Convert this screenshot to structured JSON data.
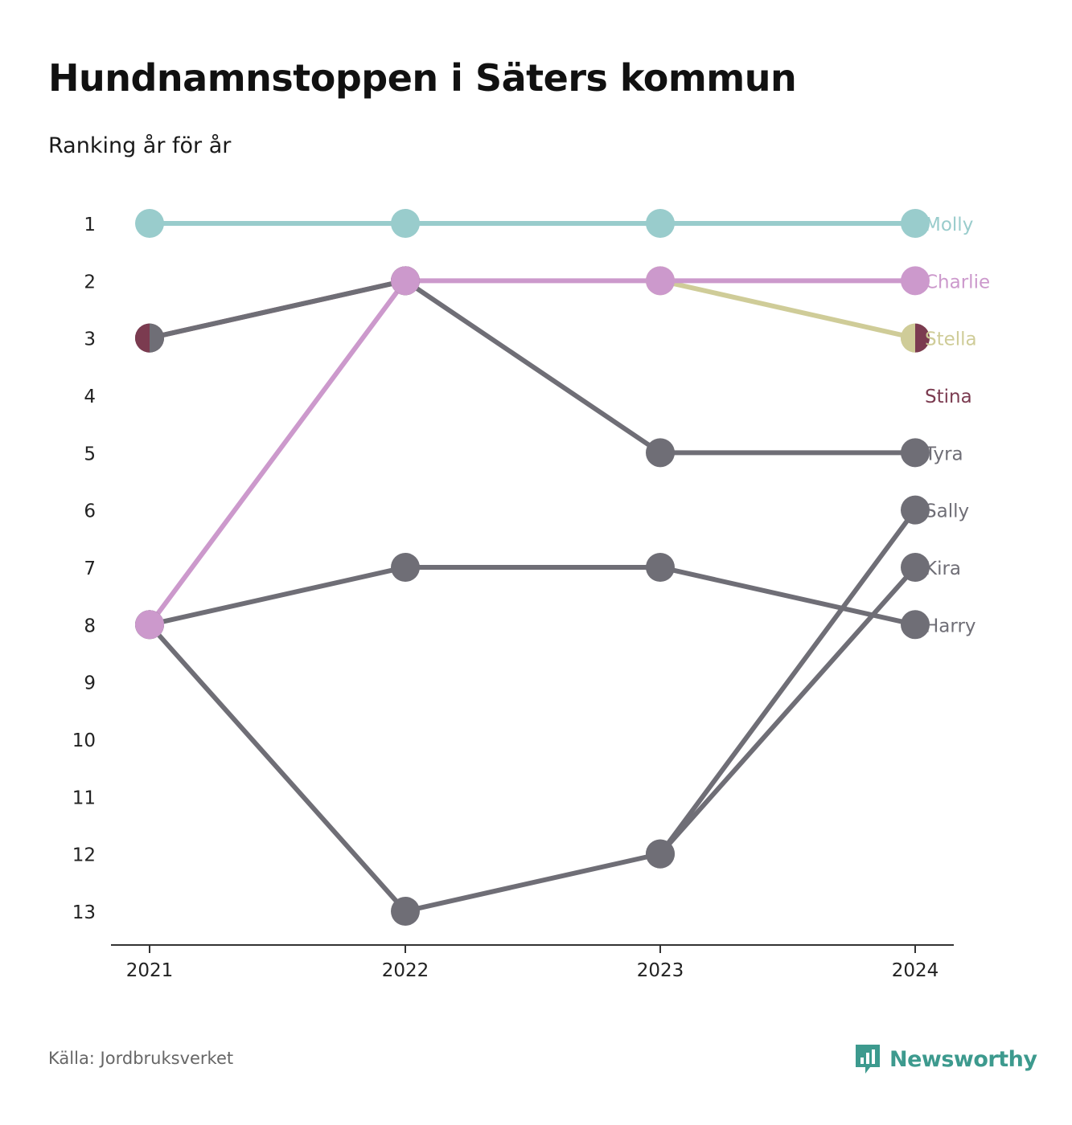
{
  "header": {
    "title": "Hundnamnstoppen i Säters kommun",
    "subtitle": "Ranking år för år"
  },
  "footer": {
    "source": "Källa: Jordbruksverket",
    "brand": "Newsworthy",
    "brand_color": "#3d9a8e"
  },
  "chart_data": {
    "type": "line",
    "x": [
      "2021",
      "2022",
      "2023",
      "2024"
    ],
    "y_ticks": [
      "1",
      "2",
      "3",
      "4",
      "5",
      "6",
      "7",
      "8",
      "9",
      "10",
      "11",
      "12",
      "13"
    ],
    "ylim": [
      1,
      13
    ],
    "y_inverted": true,
    "grid": false,
    "legend": "direct labels at right end",
    "series": [
      {
        "name": "Stina",
        "color": "#7b3b50",
        "values": [
          3,
          2,
          null,
          null
        ]
      },
      {
        "name": "Harry",
        "color": "#6f6e76",
        "values": [
          8,
          7,
          7,
          8
        ]
      },
      {
        "name": "Sally",
        "color": "#6f6e76",
        "values": [
          8,
          13,
          12,
          6
        ]
      },
      {
        "name": "Kira",
        "color": "#6f6e76",
        "values": [
          null,
          null,
          12,
          7
        ]
      },
      {
        "name": "Tyra",
        "color": "#6f6e76",
        "values": [
          3,
          2,
          5,
          5
        ]
      },
      {
        "name": "Stella",
        "color": "#cfcc98",
        "values": [
          null,
          null,
          2,
          3
        ]
      },
      {
        "name": "Charlie",
        "color": "#cc99cc",
        "values": [
          8,
          2,
          2,
          2
        ]
      },
      {
        "name": "Molly",
        "color": "#99cccc",
        "values": [
          1,
          1,
          1,
          1
        ]
      }
    ],
    "end_labels": [
      {
        "name": "Molly",
        "rank": 1,
        "color": "#99cccc"
      },
      {
        "name": "Charlie",
        "rank": 2,
        "color": "#cc99cc"
      },
      {
        "name": "Stella",
        "rank": 3,
        "color": "#cfcc98"
      },
      {
        "name": "Stina",
        "rank": 4,
        "color": "#7b3b50"
      },
      {
        "name": "Tyra",
        "rank": 5,
        "color": "#6f6e76"
      },
      {
        "name": "Sally",
        "rank": 6,
        "color": "#6f6e76"
      },
      {
        "name": "Kira",
        "rank": 7,
        "color": "#6f6e76"
      },
      {
        "name": "Harry",
        "rank": 8,
        "color": "#6f6e76"
      }
    ],
    "split_markers": [
      {
        "x": "2021",
        "rank": 3,
        "left_color": "#7b3b50",
        "right_color": "#6f6e76"
      },
      {
        "x": "2024",
        "rank": 3,
        "left_color": "#cfcc98",
        "right_color": "#7b3b50"
      }
    ]
  }
}
